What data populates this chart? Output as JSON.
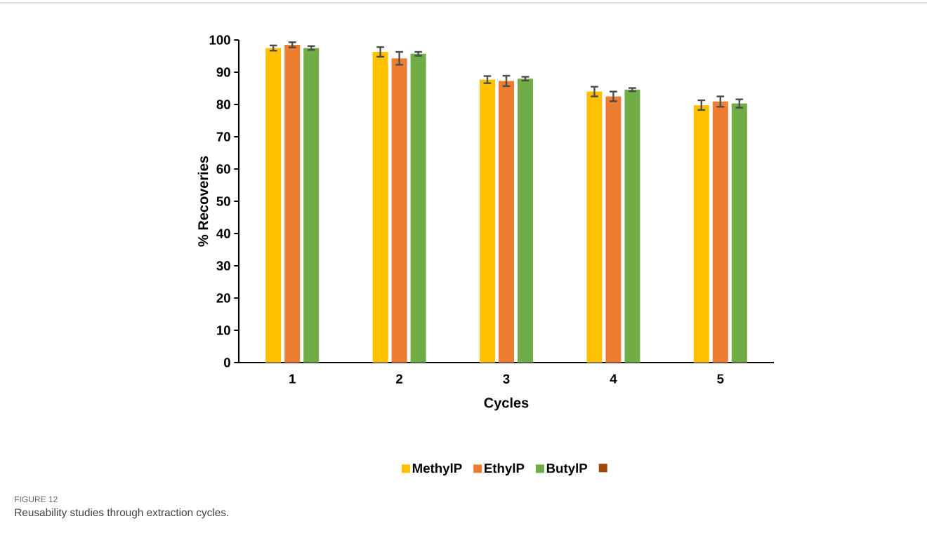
{
  "chart_data": {
    "type": "bar",
    "xlabel": "Cycles",
    "ylabel": "% Recoveries",
    "categories": [
      "1",
      "2",
      "3",
      "4",
      "5"
    ],
    "series": [
      {
        "name": "MethylP",
        "color": "#ffc000",
        "values": [
          97.5,
          96.3,
          87.7,
          84.0,
          79.8
        ],
        "errors": [
          0.8,
          1.5,
          1.1,
          1.5,
          1.5
        ]
      },
      {
        "name": "EthylP",
        "color": "#ed7d31",
        "values": [
          98.5,
          94.3,
          87.3,
          82.5,
          80.9
        ],
        "errors": [
          0.8,
          2.0,
          1.6,
          1.5,
          1.6
        ]
      },
      {
        "name": "ButylP",
        "color": "#70ad47",
        "values": [
          97.5,
          95.7,
          88.0,
          84.6,
          80.3
        ],
        "errors": [
          0.6,
          0.6,
          0.6,
          0.5,
          1.3
        ]
      },
      {
        "color": "#9e480e",
        "values": [
          null,
          null,
          null,
          null,
          null
        ]
      }
    ],
    "ylim": [
      0,
      100
    ],
    "yticks": [
      0,
      10,
      20,
      30,
      40,
      50,
      60,
      70,
      80,
      90,
      100
    ],
    "grid": false,
    "legend": "bottom",
    "annotations": [
      "FIGURE 12",
      "Reusability studies through extraction cycles."
    ]
  }
}
